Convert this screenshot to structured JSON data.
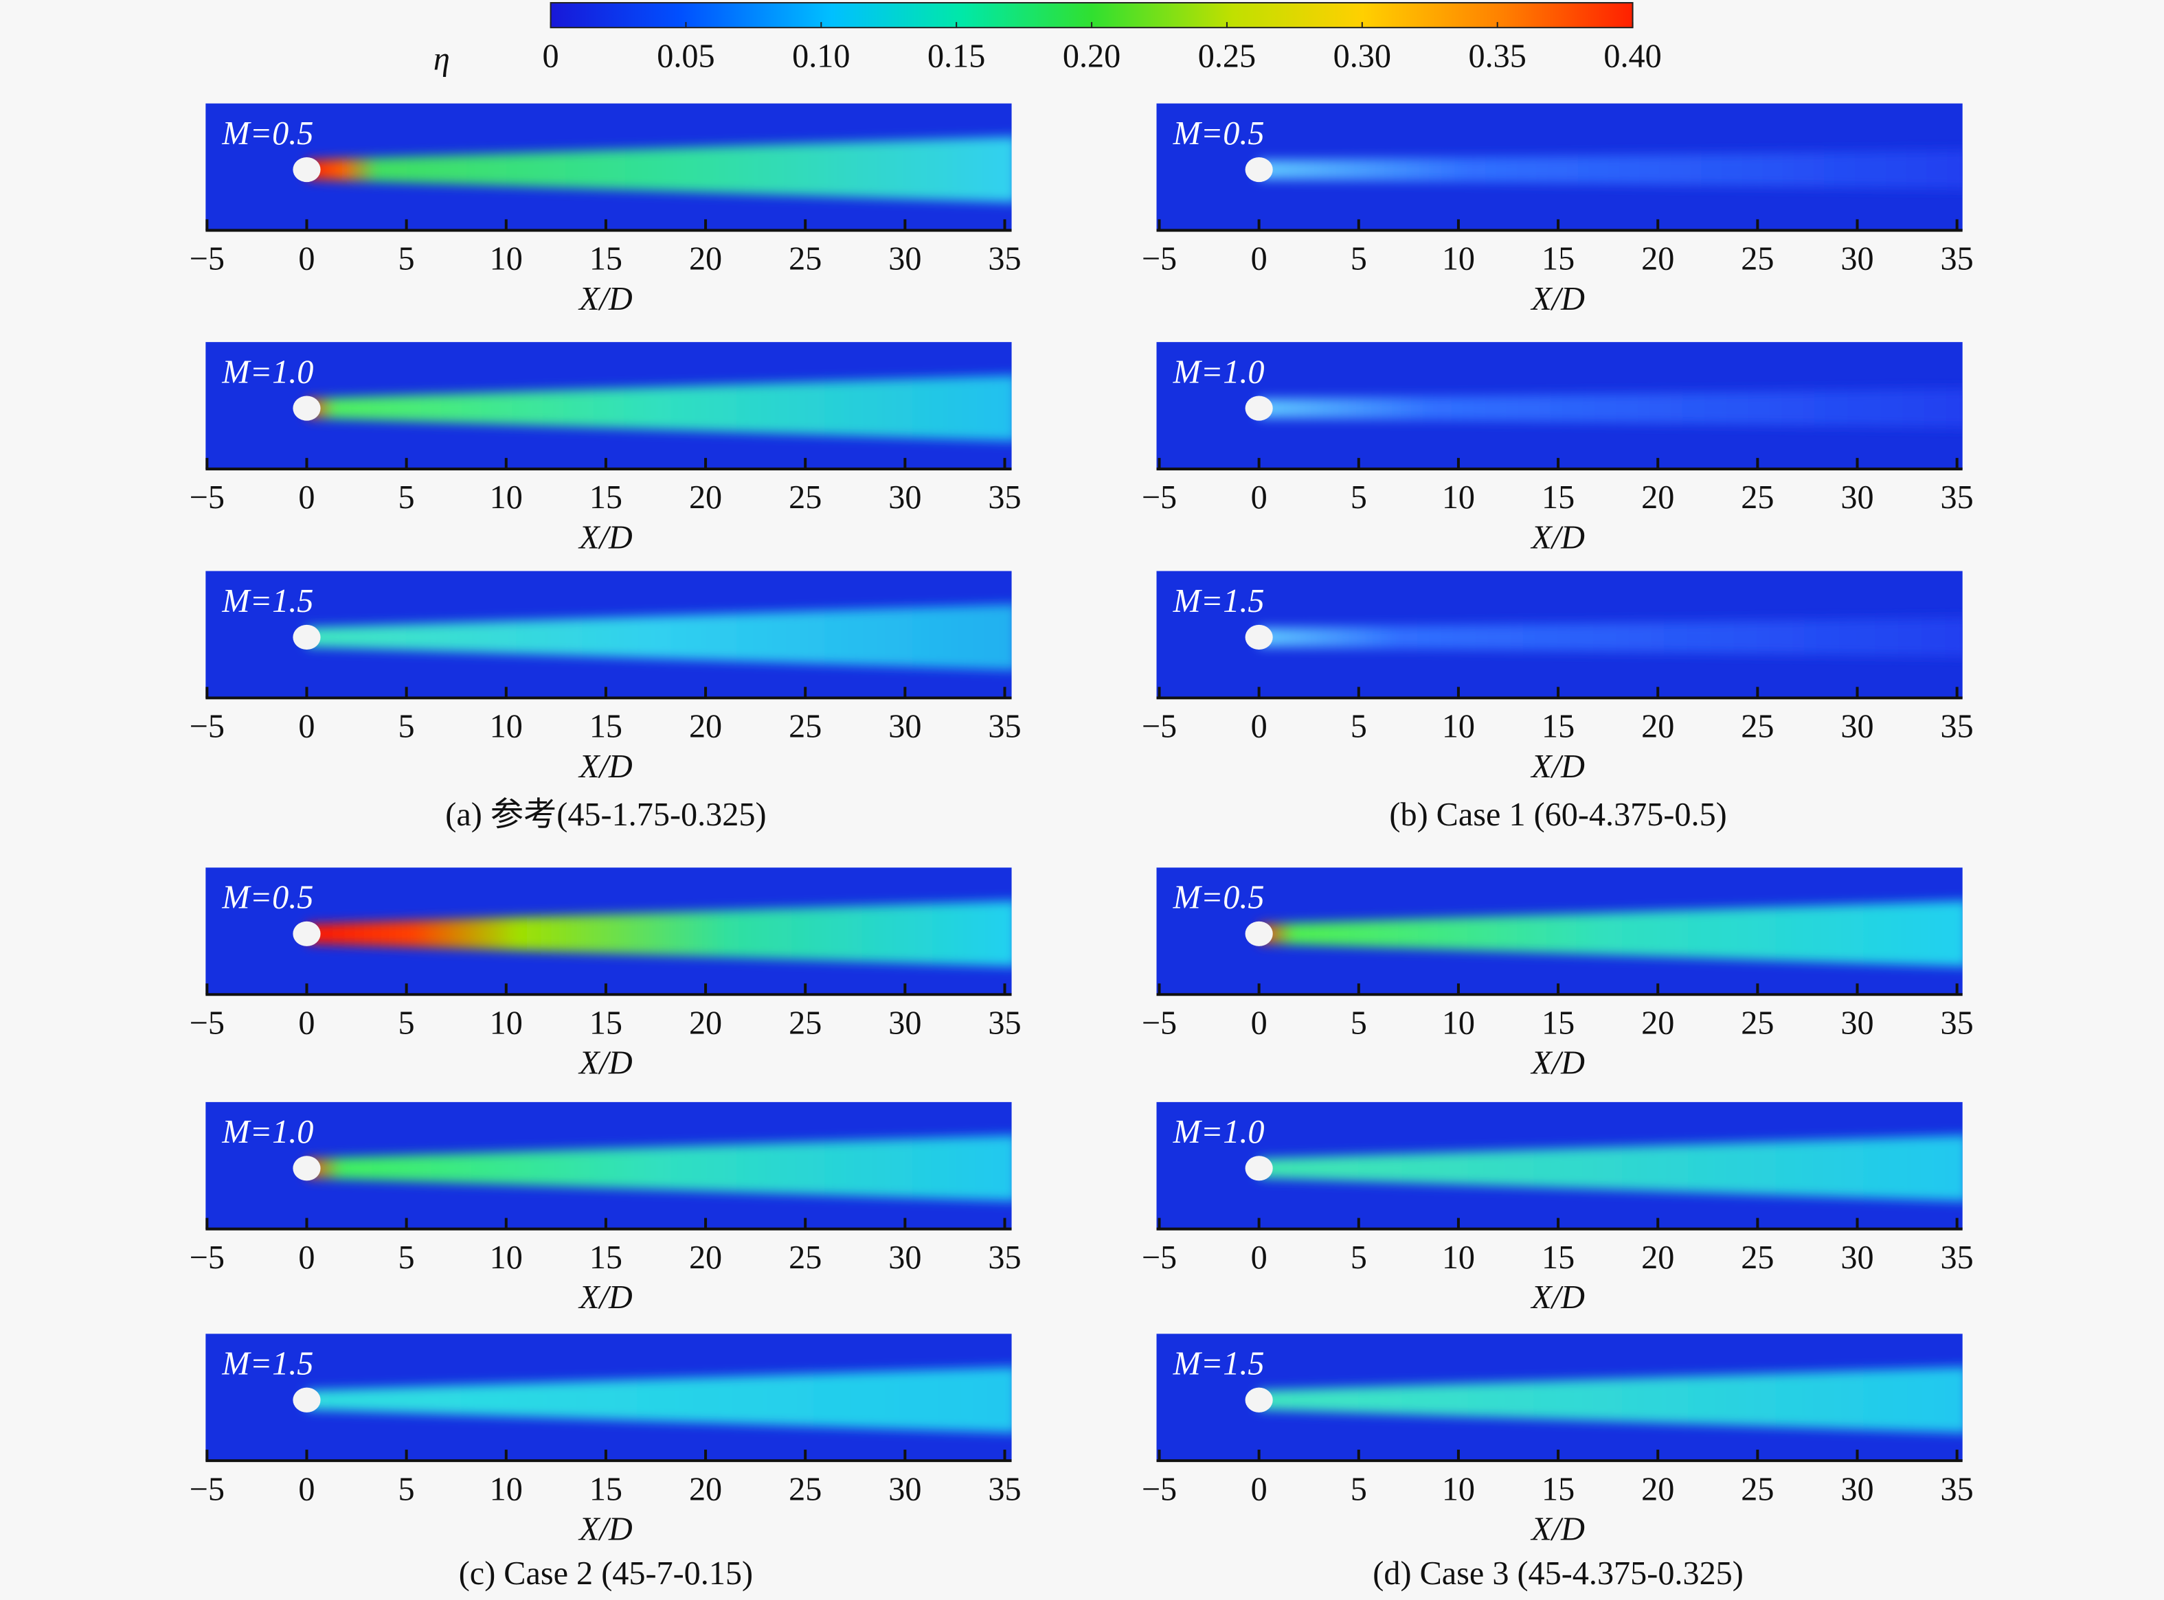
{
  "colorbar": {
    "symbol": "η",
    "lim": [
      0,
      0.4
    ],
    "ticks": [
      0,
      0.05,
      {
        "value": 0.1,
        "label": "0.10"
      },
      0.15,
      {
        "value": 0.2,
        "label": "0.20"
      },
      0.25,
      {
        "value": 0.3,
        "label": "0.30"
      },
      0.35,
      {
        "value": 0.4,
        "label": "0.40"
      }
    ]
  },
  "x_axis": {
    "lim": [
      -5,
      35
    ],
    "ticks": [
      {
        "value": -5,
        "label": "−5"
      },
      0,
      5,
      10,
      15,
      20,
      25,
      30,
      35
    ],
    "label": "X/D"
  },
  "groups": [
    {
      "caption": "(a) 参考(45-1.75-0.325)",
      "panels": [
        {
          "label": "M=0.5"
        },
        {
          "label": "M=1.0"
        },
        {
          "label": "M=1.5"
        }
      ]
    },
    {
      "caption": "(b) Case 1 (60-4.375-0.5)",
      "panels": [
        {
          "label": "M=0.5"
        },
        {
          "label": "M=1.0"
        },
        {
          "label": "M=1.5"
        }
      ]
    },
    {
      "caption": "(c) Case 2 (45-7-0.15)",
      "panels": [
        {
          "label": "M=0.5"
        },
        {
          "label": "M=1.0"
        },
        {
          "label": "M=1.5"
        }
      ]
    },
    {
      "caption": "(d) Case 3 (45-4.375-0.325)",
      "panels": [
        {
          "label": "M=0.5"
        },
        {
          "label": "M=1.0"
        },
        {
          "label": "M=1.5"
        }
      ]
    }
  ]
}
